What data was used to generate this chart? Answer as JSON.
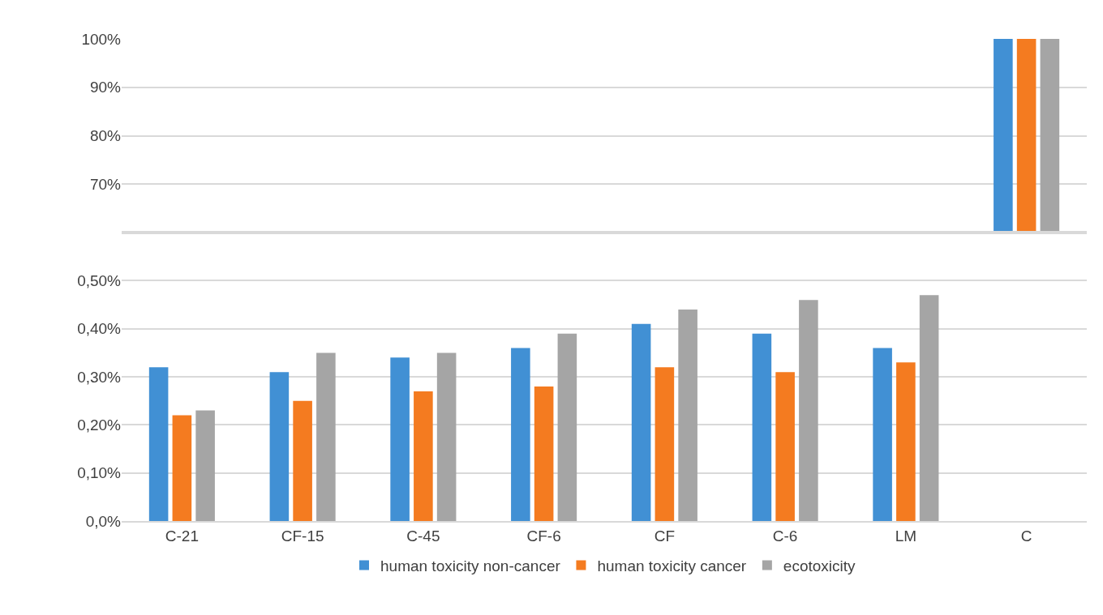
{
  "chart_data": [
    {
      "type": "bar",
      "categories": [
        "C-21",
        "CF-15",
        "C-45",
        "CF-6",
        "CF",
        "C-6",
        "LM",
        "C"
      ],
      "tick_labels": "y",
      "grid": "y",
      "ylim": [
        60,
        100
      ],
      "yticks": [
        {
          "value": 70,
          "label": "70%"
        },
        {
          "value": 80,
          "label": "80%"
        },
        {
          "value": 90,
          "label": "90%"
        },
        {
          "value": 100,
          "label": "100%"
        }
      ],
      "series": [
        {
          "color": "#4190d4",
          "values": [
            null,
            null,
            null,
            null,
            null,
            null,
            null,
            100
          ]
        },
        {
          "color": "#f47b20",
          "values": [
            null,
            null,
            null,
            null,
            null,
            null,
            null,
            100
          ]
        },
        {
          "color": "#a5a5a5",
          "values": [
            null,
            null,
            null,
            null,
            null,
            null,
            null,
            100
          ]
        }
      ]
    },
    {
      "type": "bar",
      "categories": [
        "C-21",
        "CF-15",
        "C-45",
        "CF-6",
        "CF",
        "C-6",
        "LM",
        "C"
      ],
      "legend": "bottom",
      "grid": "y",
      "ylim": [
        0,
        0.6
      ],
      "yticks": [
        {
          "value": 0,
          "label": "0,0%"
        },
        {
          "value": 0.1,
          "label": "0,10%"
        },
        {
          "value": 0.2,
          "label": "0,20%"
        },
        {
          "value": 0.3,
          "label": "0,30%"
        },
        {
          "value": 0.4,
          "label": "0,40%"
        },
        {
          "value": 0.5,
          "label": "0,50%"
        }
      ],
      "series": [
        {
          "name": "human toxicity non-cancer",
          "color": "#4190d4",
          "values": [
            0.32,
            0.31,
            0.34,
            0.36,
            0.41,
            0.39,
            0.36,
            null
          ]
        },
        {
          "name": "human toxicity cancer",
          "color": "#f47b20",
          "values": [
            0.22,
            0.25,
            0.27,
            0.28,
            0.32,
            0.31,
            0.33,
            null
          ]
        },
        {
          "name": "ecotoxicity",
          "color": "#a5a5a5",
          "values": [
            0.23,
            0.35,
            0.35,
            0.39,
            0.44,
            0.46,
            0.47,
            null
          ]
        }
      ]
    }
  ]
}
